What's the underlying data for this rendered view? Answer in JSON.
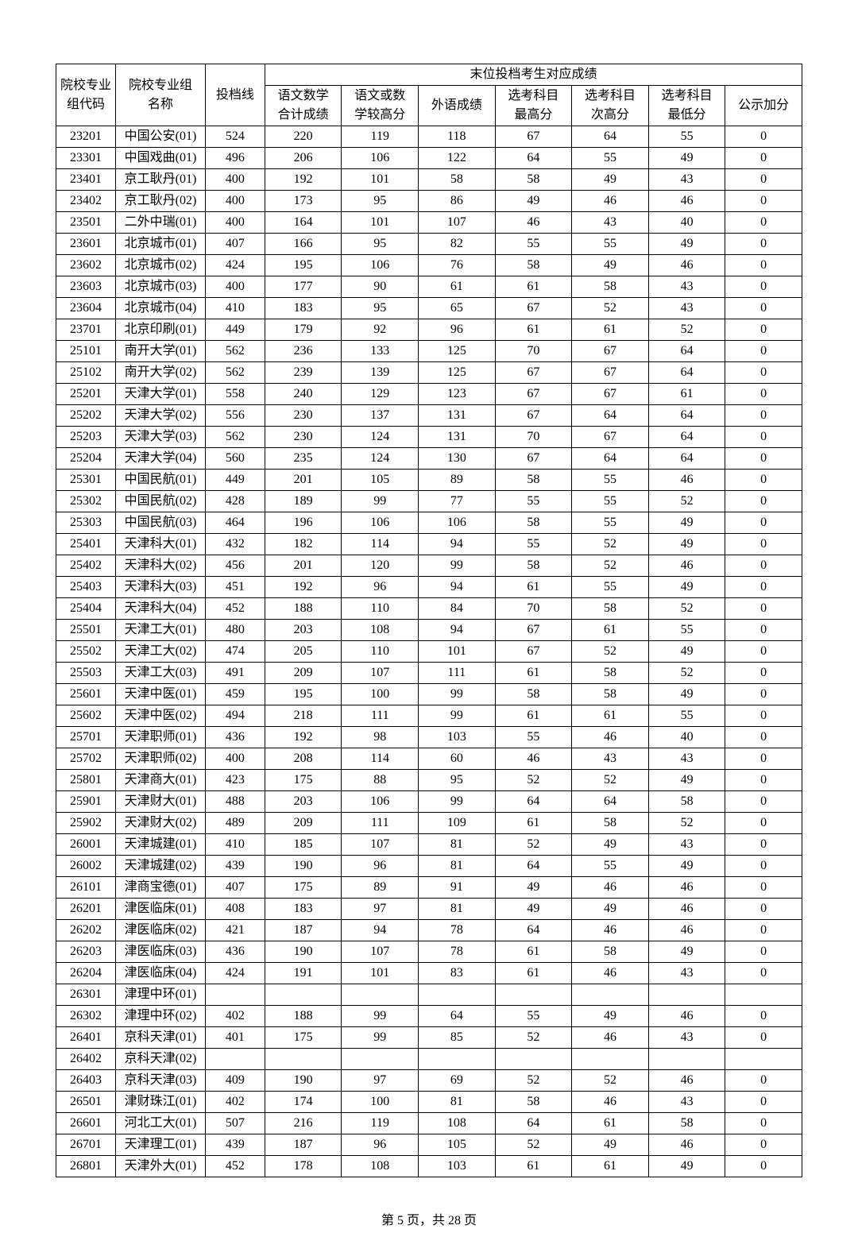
{
  "headers": {
    "codeGroup": "院校专业\n组代码",
    "nameGroup": "院校专业组\n名称",
    "admitLine": "投档线",
    "lastGroup": "末位投档考生对应成绩",
    "s1": "语文数学\n合计成绩",
    "s2": "语文或数\n学较高分",
    "s3": "外语成绩",
    "s4": "选考科目\n最高分",
    "s5": "选考科目\n次高分",
    "s6": "选考科目\n最低分",
    "s7": "公示加分"
  },
  "rows": [
    {
      "code": "23201",
      "name": "中国公安(01)",
      "line": "524",
      "v": [
        "220",
        "119",
        "118",
        "67",
        "64",
        "55",
        "0"
      ]
    },
    {
      "code": "23301",
      "name": "中国戏曲(01)",
      "line": "496",
      "v": [
        "206",
        "106",
        "122",
        "64",
        "55",
        "49",
        "0"
      ]
    },
    {
      "code": "23401",
      "name": "京工耿丹(01)",
      "line": "400",
      "v": [
        "192",
        "101",
        "58",
        "58",
        "49",
        "43",
        "0"
      ]
    },
    {
      "code": "23402",
      "name": "京工耿丹(02)",
      "line": "400",
      "v": [
        "173",
        "95",
        "86",
        "49",
        "46",
        "46",
        "0"
      ]
    },
    {
      "code": "23501",
      "name": "二外中瑞(01)",
      "line": "400",
      "v": [
        "164",
        "101",
        "107",
        "46",
        "43",
        "40",
        "0"
      ]
    },
    {
      "code": "23601",
      "name": "北京城市(01)",
      "line": "407",
      "v": [
        "166",
        "95",
        "82",
        "55",
        "55",
        "49",
        "0"
      ]
    },
    {
      "code": "23602",
      "name": "北京城市(02)",
      "line": "424",
      "v": [
        "195",
        "106",
        "76",
        "58",
        "49",
        "46",
        "0"
      ]
    },
    {
      "code": "23603",
      "name": "北京城市(03)",
      "line": "400",
      "v": [
        "177",
        "90",
        "61",
        "61",
        "58",
        "43",
        "0"
      ]
    },
    {
      "code": "23604",
      "name": "北京城市(04)",
      "line": "410",
      "v": [
        "183",
        "95",
        "65",
        "67",
        "52",
        "43",
        "0"
      ]
    },
    {
      "code": "23701",
      "name": "北京印刷(01)",
      "line": "449",
      "v": [
        "179",
        "92",
        "96",
        "61",
        "61",
        "52",
        "0"
      ]
    },
    {
      "code": "25101",
      "name": "南开大学(01)",
      "line": "562",
      "v": [
        "236",
        "133",
        "125",
        "70",
        "67",
        "64",
        "0"
      ]
    },
    {
      "code": "25102",
      "name": "南开大学(02)",
      "line": "562",
      "v": [
        "239",
        "139",
        "125",
        "67",
        "67",
        "64",
        "0"
      ]
    },
    {
      "code": "25201",
      "name": "天津大学(01)",
      "line": "558",
      "v": [
        "240",
        "129",
        "123",
        "67",
        "67",
        "61",
        "0"
      ]
    },
    {
      "code": "25202",
      "name": "天津大学(02)",
      "line": "556",
      "v": [
        "230",
        "137",
        "131",
        "67",
        "64",
        "64",
        "0"
      ]
    },
    {
      "code": "25203",
      "name": "天津大学(03)",
      "line": "562",
      "v": [
        "230",
        "124",
        "131",
        "70",
        "67",
        "64",
        "0"
      ]
    },
    {
      "code": "25204",
      "name": "天津大学(04)",
      "line": "560",
      "v": [
        "235",
        "124",
        "130",
        "67",
        "64",
        "64",
        "0"
      ]
    },
    {
      "code": "25301",
      "name": "中国民航(01)",
      "line": "449",
      "v": [
        "201",
        "105",
        "89",
        "58",
        "55",
        "46",
        "0"
      ]
    },
    {
      "code": "25302",
      "name": "中国民航(02)",
      "line": "428",
      "v": [
        "189",
        "99",
        "77",
        "55",
        "55",
        "52",
        "0"
      ]
    },
    {
      "code": "25303",
      "name": "中国民航(03)",
      "line": "464",
      "v": [
        "196",
        "106",
        "106",
        "58",
        "55",
        "49",
        "0"
      ]
    },
    {
      "code": "25401",
      "name": "天津科大(01)",
      "line": "432",
      "v": [
        "182",
        "114",
        "94",
        "55",
        "52",
        "49",
        "0"
      ]
    },
    {
      "code": "25402",
      "name": "天津科大(02)",
      "line": "456",
      "v": [
        "201",
        "120",
        "99",
        "58",
        "52",
        "46",
        "0"
      ]
    },
    {
      "code": "25403",
      "name": "天津科大(03)",
      "line": "451",
      "v": [
        "192",
        "96",
        "94",
        "61",
        "55",
        "49",
        "0"
      ]
    },
    {
      "code": "25404",
      "name": "天津科大(04)",
      "line": "452",
      "v": [
        "188",
        "110",
        "84",
        "70",
        "58",
        "52",
        "0"
      ]
    },
    {
      "code": "25501",
      "name": "天津工大(01)",
      "line": "480",
      "v": [
        "203",
        "108",
        "94",
        "67",
        "61",
        "55",
        "0"
      ]
    },
    {
      "code": "25502",
      "name": "天津工大(02)",
      "line": "474",
      "v": [
        "205",
        "110",
        "101",
        "67",
        "52",
        "49",
        "0"
      ]
    },
    {
      "code": "25503",
      "name": "天津工大(03)",
      "line": "491",
      "v": [
        "209",
        "107",
        "111",
        "61",
        "58",
        "52",
        "0"
      ]
    },
    {
      "code": "25601",
      "name": "天津中医(01)",
      "line": "459",
      "v": [
        "195",
        "100",
        "99",
        "58",
        "58",
        "49",
        "0"
      ]
    },
    {
      "code": "25602",
      "name": "天津中医(02)",
      "line": "494",
      "v": [
        "218",
        "111",
        "99",
        "61",
        "61",
        "55",
        "0"
      ]
    },
    {
      "code": "25701",
      "name": "天津职师(01)",
      "line": "436",
      "v": [
        "192",
        "98",
        "103",
        "55",
        "46",
        "40",
        "0"
      ]
    },
    {
      "code": "25702",
      "name": "天津职师(02)",
      "line": "400",
      "v": [
        "208",
        "114",
        "60",
        "46",
        "43",
        "43",
        "0"
      ]
    },
    {
      "code": "25801",
      "name": "天津商大(01)",
      "line": "423",
      "v": [
        "175",
        "88",
        "95",
        "52",
        "52",
        "49",
        "0"
      ]
    },
    {
      "code": "25901",
      "name": "天津财大(01)",
      "line": "488",
      "v": [
        "203",
        "106",
        "99",
        "64",
        "64",
        "58",
        "0"
      ]
    },
    {
      "code": "25902",
      "name": "天津财大(02)",
      "line": "489",
      "v": [
        "209",
        "111",
        "109",
        "61",
        "58",
        "52",
        "0"
      ]
    },
    {
      "code": "26001",
      "name": "天津城建(01)",
      "line": "410",
      "v": [
        "185",
        "107",
        "81",
        "52",
        "49",
        "43",
        "0"
      ]
    },
    {
      "code": "26002",
      "name": "天津城建(02)",
      "line": "439",
      "v": [
        "190",
        "96",
        "81",
        "64",
        "55",
        "49",
        "0"
      ]
    },
    {
      "code": "26101",
      "name": "津商宝德(01)",
      "line": "407",
      "v": [
        "175",
        "89",
        "91",
        "49",
        "46",
        "46",
        "0"
      ]
    },
    {
      "code": "26201",
      "name": "津医临床(01)",
      "line": "408",
      "v": [
        "183",
        "97",
        "81",
        "49",
        "49",
        "46",
        "0"
      ]
    },
    {
      "code": "26202",
      "name": "津医临床(02)",
      "line": "421",
      "v": [
        "187",
        "94",
        "78",
        "64",
        "46",
        "46",
        "0"
      ]
    },
    {
      "code": "26203",
      "name": "津医临床(03)",
      "line": "436",
      "v": [
        "190",
        "107",
        "78",
        "61",
        "58",
        "49",
        "0"
      ]
    },
    {
      "code": "26204",
      "name": "津医临床(04)",
      "line": "424",
      "v": [
        "191",
        "101",
        "83",
        "61",
        "46",
        "43",
        "0"
      ]
    },
    {
      "code": "26301",
      "name": "津理中环(01)",
      "line": "",
      "v": [
        "",
        "",
        "",
        "",
        "",
        "",
        ""
      ]
    },
    {
      "code": "26302",
      "name": "津理中环(02)",
      "line": "402",
      "v": [
        "188",
        "99",
        "64",
        "55",
        "49",
        "46",
        "0"
      ]
    },
    {
      "code": "26401",
      "name": "京科天津(01)",
      "line": "401",
      "v": [
        "175",
        "99",
        "85",
        "52",
        "46",
        "43",
        "0"
      ]
    },
    {
      "code": "26402",
      "name": "京科天津(02)",
      "line": "",
      "v": [
        "",
        "",
        "",
        "",
        "",
        "",
        ""
      ]
    },
    {
      "code": "26403",
      "name": "京科天津(03)",
      "line": "409",
      "v": [
        "190",
        "97",
        "69",
        "52",
        "52",
        "46",
        "0"
      ]
    },
    {
      "code": "26501",
      "name": "津财珠江(01)",
      "line": "402",
      "v": [
        "174",
        "100",
        "81",
        "58",
        "46",
        "43",
        "0"
      ]
    },
    {
      "code": "26601",
      "name": "河北工大(01)",
      "line": "507",
      "v": [
        "216",
        "119",
        "108",
        "64",
        "61",
        "58",
        "0"
      ]
    },
    {
      "code": "26701",
      "name": "天津理工(01)",
      "line": "439",
      "v": [
        "187",
        "96",
        "105",
        "52",
        "49",
        "46",
        "0"
      ]
    },
    {
      "code": "26801",
      "name": "天津外大(01)",
      "line": "452",
      "v": [
        "178",
        "108",
        "103",
        "61",
        "61",
        "49",
        "0"
      ]
    }
  ],
  "footer": {
    "prefix": "第",
    "pageNum": "5",
    "mid": "页，共",
    "totalPages": "28",
    "suffix": "页"
  }
}
